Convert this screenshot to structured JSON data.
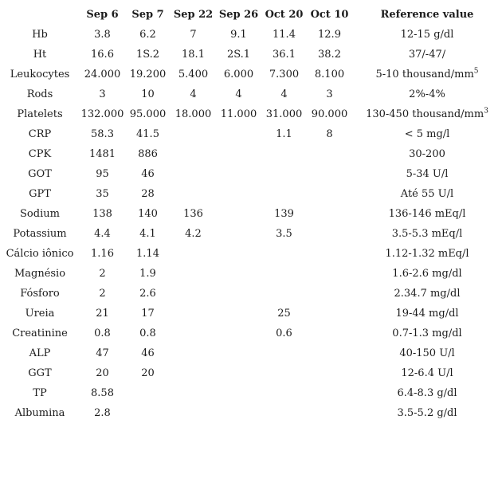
{
  "table": {
    "title": "Lab results table",
    "headers": [
      "",
      "Sep 6",
      "Sep 7",
      "Sep 22",
      "Sep 26",
      "Oct 20",
      "Oct 10",
      "Reference value"
    ],
    "rows": [
      {
        "label": "Hb",
        "values": [
          "3.8",
          "6.2",
          "7",
          "9.1",
          "11.4",
          "12.9"
        ],
        "ref": "12-15 g/dl"
      },
      {
        "label": "Ht",
        "values": [
          "16.6",
          "1S.2",
          "18.1",
          "2S.1",
          "36.1",
          "38.2"
        ],
        "ref": "37/-47/"
      },
      {
        "label": "Leukocytes",
        "values": [
          "24.000",
          "19.200",
          "5.400",
          "6.000",
          "7.300",
          "8.100"
        ],
        "ref": "5-10 thousand/mm^5"
      },
      {
        "label": "Rods",
        "values": [
          "3",
          "10",
          "4",
          "4",
          "4",
          "3"
        ],
        "ref": "2%-4%"
      },
      {
        "label": "Platelets",
        "values": [
          "132.000",
          "95.000",
          "18.000",
          "11.000",
          "31.000",
          "90.000"
        ],
        "ref": "130-450 thousand/mm^3"
      },
      {
        "label": "CRP",
        "values": [
          "58.3",
          "41.5",
          "",
          "",
          "1.1",
          "8"
        ],
        "ref": "< 5 mg/l"
      },
      {
        "label": "CPK",
        "values": [
          "1481",
          "886",
          "",
          "",
          "",
          ""
        ],
        "ref": "30-200"
      },
      {
        "label": "GOT",
        "values": [
          "95",
          "46",
          "",
          "",
          "",
          ""
        ],
        "ref": "5-34 U/l"
      },
      {
        "label": "GPT",
        "values": [
          "35",
          "28",
          "",
          "",
          "",
          ""
        ],
        "ref": "Até 55 U/l"
      },
      {
        "label": "Sodium",
        "values": [
          "138",
          "140",
          "136",
          "",
          "139",
          ""
        ],
        "ref": "136-146 mEq/l"
      },
      {
        "label": "Potassium",
        "values": [
          "4.4",
          "4.1",
          "4.2",
          "",
          "3.5",
          ""
        ],
        "ref": "3.5-5.3 mEq/l"
      },
      {
        "label": "Cálcio iônico",
        "values": [
          "1.16",
          "1.14",
          "",
          "",
          "",
          ""
        ],
        "ref": "1.12-1.32 mEq/l"
      },
      {
        "label": "Magnésio",
        "values": [
          "2",
          "1.9",
          "",
          "",
          "",
          ""
        ],
        "ref": "1.6-2.6 mg/dl"
      },
      {
        "label": "Fósforo",
        "values": [
          "2",
          "2.6",
          "",
          "",
          "",
          ""
        ],
        "ref": "2.34.7 mg/dl"
      },
      {
        "label": "Ureia",
        "values": [
          "21",
          "17",
          "",
          "",
          "25",
          ""
        ],
        "ref": "19-44 mg/dl"
      },
      {
        "label": "Creatinine",
        "values": [
          "0.8",
          "0.8",
          "",
          "",
          "0.6",
          ""
        ],
        "ref": "0.7-1.3 mg/dl"
      },
      {
        "label": "ALP",
        "values": [
          "47",
          "46",
          "",
          "",
          "",
          ""
        ],
        "ref": "40-150 U/l"
      },
      {
        "label": "GGT",
        "values": [
          "20",
          "20",
          "",
          "",
          "",
          ""
        ],
        "ref": "12-6.4 U/l"
      },
      {
        "label": "TP",
        "values": [
          "8.58",
          "",
          "",
          "",
          "",
          ""
        ],
        "ref": "6.4-8.3 g/dl"
      },
      {
        "label": "Albumina",
        "values": [
          "2.8",
          "",
          "",
          "",
          "",
          ""
        ],
        "ref": "3.5-5.2 g/dl"
      }
    ]
  }
}
